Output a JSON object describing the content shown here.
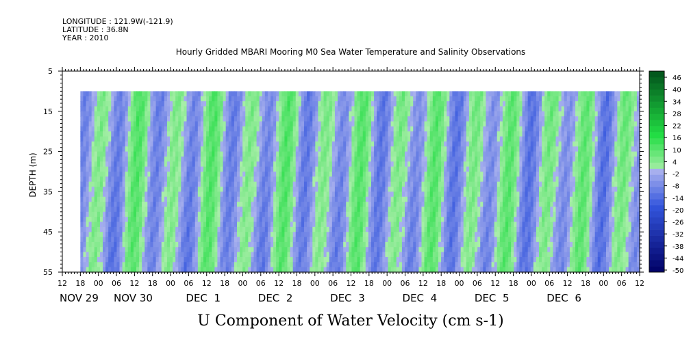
{
  "header": {
    "longitude": "LONGITUDE : 121.9W(-121.9)",
    "latitude": "LATITUDE : 36.8N",
    "year": "YEAR : 2010"
  },
  "chart_data": {
    "type": "heatmap",
    "title": "Hourly Gridded MBARI Mooring M0 Sea Water Temperature and Salinity Observations",
    "variable_label": "U Component of Water Velocity (cm s-1)",
    "ylabel": "DEPTH (m)",
    "y_axis": {
      "ylim": [
        5,
        55
      ],
      "inverted": true,
      "ticks": [
        5,
        15,
        25,
        35,
        45,
        55
      ]
    },
    "x_axis": {
      "start_hour": 12,
      "end_hour": 12,
      "hour_ticks": [
        "12",
        "18",
        "00",
        "06",
        "12",
        "18",
        "00",
        "06",
        "12",
        "18",
        "00",
        "06",
        "12",
        "18",
        "00",
        "06",
        "12",
        "18",
        "00",
        "06",
        "12",
        "18",
        "00",
        "06",
        "12",
        "18",
        "00",
        "06",
        "12",
        "18",
        "00",
        "06",
        "12"
      ],
      "date_labels": [
        {
          "label": "NOV 29",
          "hour_index": 0
        },
        {
          "label": "NOV 30",
          "hour_index": 3
        },
        {
          "label": "DEC  1",
          "hour_index": 7
        },
        {
          "label": "DEC  2",
          "hour_index": 11
        },
        {
          "label": "DEC  3",
          "hour_index": 15
        },
        {
          "label": "DEC  4",
          "hour_index": 19
        },
        {
          "label": "DEC  5",
          "hour_index": 23
        },
        {
          "label": "DEC  6",
          "hour_index": 27
        }
      ]
    },
    "data_start_hour_index": 1,
    "data_depth_range": [
      10,
      55
    ],
    "colorbar": {
      "labels": [
        "46",
        "40",
        "34",
        "28",
        "22",
        "16",
        "10",
        "4",
        "-2",
        "-8",
        "-14",
        "-20",
        "-26",
        "-32",
        "-38",
        "-44",
        "-50"
      ],
      "levels": [
        -50,
        -47,
        -44,
        -41,
        -38,
        -35,
        -32,
        -29,
        -26,
        -23,
        -20,
        -17,
        -14,
        -11,
        -8,
        -5,
        -2,
        1,
        4,
        7,
        10,
        13,
        16,
        19,
        22,
        25,
        28,
        31,
        34,
        37,
        40,
        43,
        46,
        49
      ],
      "colors": {
        "negative_strong": "#000066",
        "negative_mid": "#3355dd",
        "negative_weak": "#aab2ee",
        "positive_weak": "#aaeeaa",
        "positive_mid": "#22dd44",
        "positive_strong": "#004d1a"
      }
    },
    "grid": false
  }
}
